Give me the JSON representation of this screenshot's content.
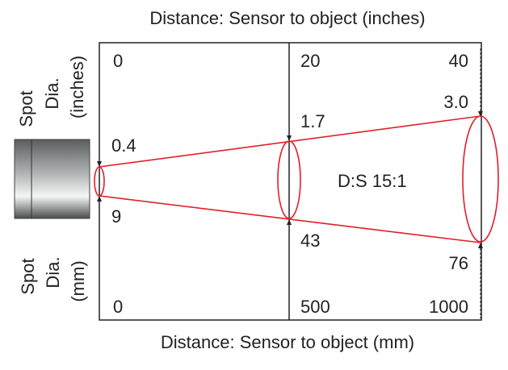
{
  "top_axis_title": "Distance: Sensor to object (inches)",
  "bottom_axis_title": "Distance: Sensor to object (mm)",
  "left_top_label": [
    "Spot",
    "Dia.",
    "(inches)"
  ],
  "left_bottom_label": [
    "Spot",
    "Dia.",
    "(mm)"
  ],
  "distance_inches": [
    "0",
    "20",
    "40"
  ],
  "distance_mm": [
    "0",
    "500",
    "1000"
  ],
  "spot_inches": [
    "0.4",
    "1.7",
    "3.0"
  ],
  "spot_mm": [
    "9",
    "43",
    "76"
  ],
  "ratio_label": "D:S 15:1",
  "colors": {
    "beam": "#e0202a",
    "frame": "#222222"
  }
}
